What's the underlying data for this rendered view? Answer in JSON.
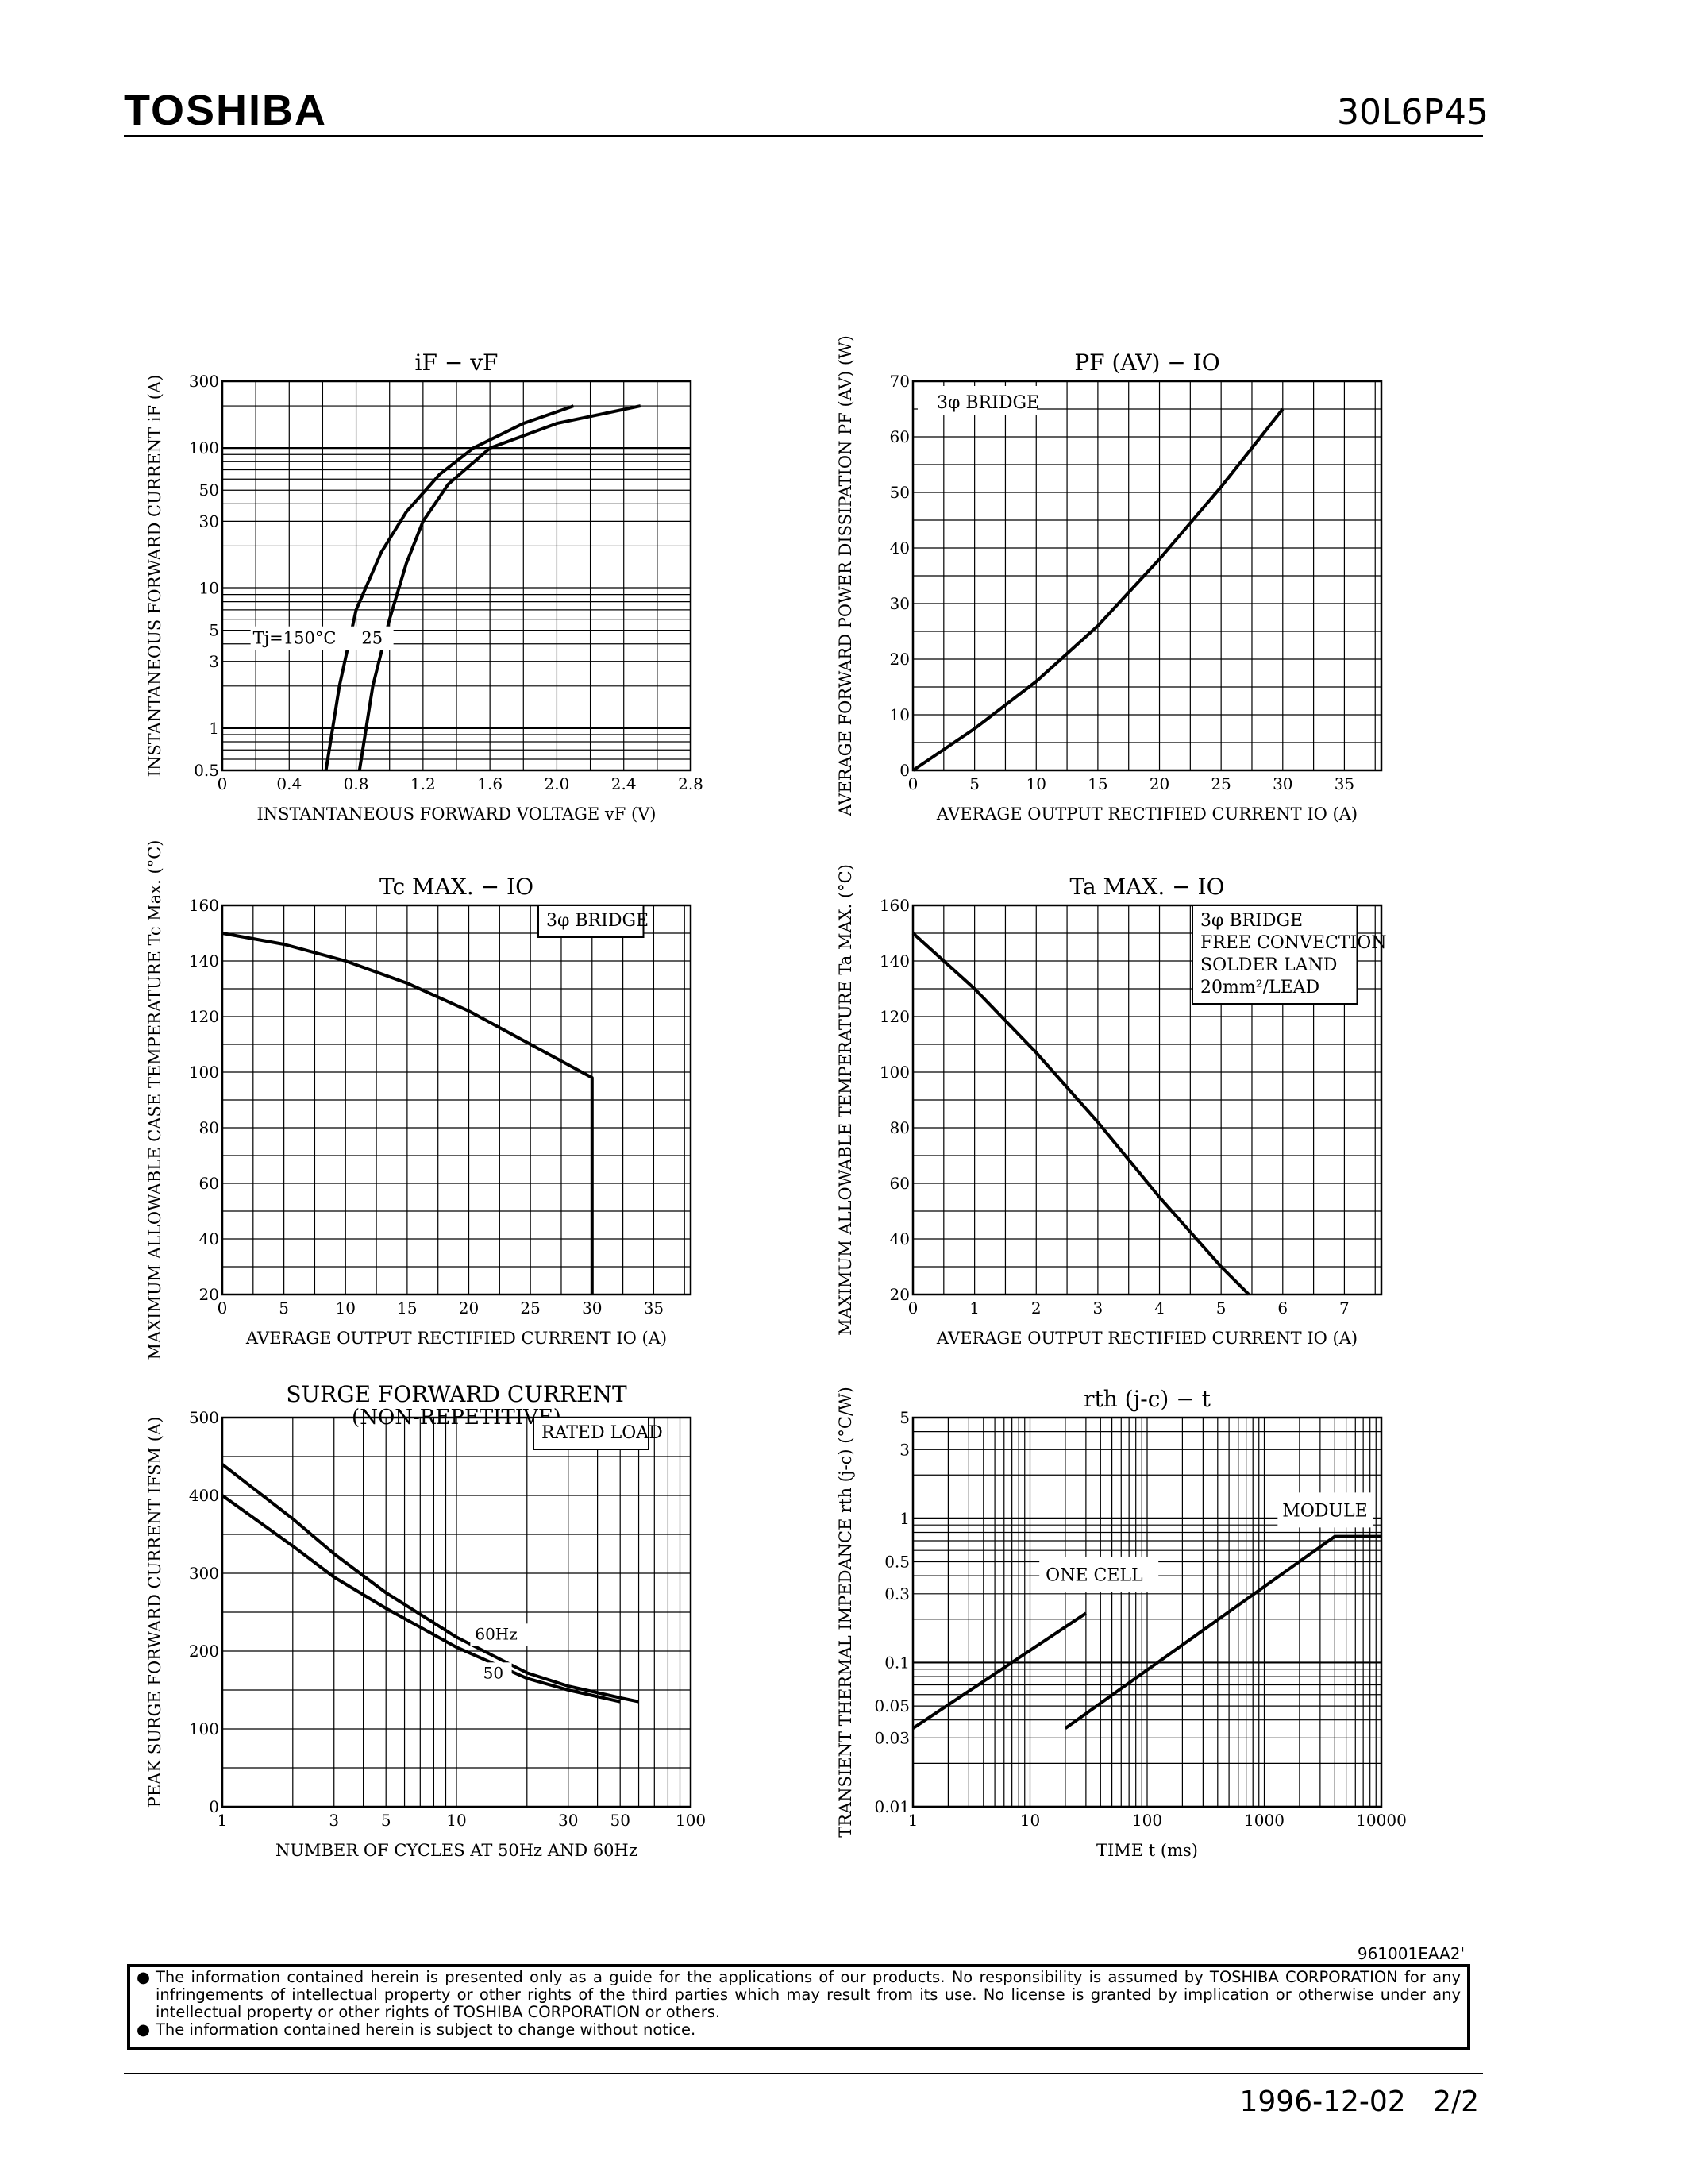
{
  "header": {
    "brand": "TOSHIBA",
    "part_number": "30L6P45"
  },
  "footer": {
    "doc_ref": "961001EAA2'",
    "notices": [
      "The information contained herein is presented only as a guide for the applications of our products. No responsibility is assumed by TOSHIBA CORPORATION for any infringements of intellectual property or other rights of the third parties which may result from its use. No license is granted by implication or otherwise under any intellectual property or other rights of TOSHIBA CORPORATION or others.",
      "The information contained herein is subject to change without notice."
    ],
    "bullet": "●",
    "date": "1996-12-02",
    "page": "2/2"
  },
  "chart_data": [
    {
      "id": "if_vf",
      "type": "line",
      "title": "iF − vF",
      "xlabel": "INSTANTANEOUS FORWARD VOLTAGE vF (V)",
      "ylabel": "INSTANTANEOUS FORWARD CURRENT iF (A)",
      "xlim": [
        0,
        2.8
      ],
      "ylim": [
        0.5,
        300
      ],
      "yscale": "log",
      "xticks": [
        0,
        0.4,
        0.8,
        1.2,
        1.6,
        2.0,
        2.4,
        2.8
      ],
      "xticklabels": [
        "0",
        "0.4",
        "0.8",
        "1.2",
        "1.6",
        "2.0",
        "2.4",
        "2.8"
      ],
      "yticks": [
        0.5,
        1,
        3,
        5,
        10,
        30,
        50,
        100,
        300
      ],
      "yticklabels": [
        "0.5",
        "1",
        "3",
        "5",
        "10",
        "30",
        "50",
        "100",
        "300"
      ],
      "annotations": [
        {
          "text": "Tj=150°C",
          "x": 0.62,
          "y": 4.0
        },
        {
          "text": "25",
          "x": 0.88,
          "y": 4.0
        }
      ],
      "series": [
        {
          "name": "150°C",
          "x": [
            0.62,
            0.7,
            0.8,
            0.95,
            1.1,
            1.3,
            1.5,
            1.8,
            2.1
          ],
          "y": [
            0.5,
            2,
            7,
            18,
            35,
            65,
            100,
            150,
            200
          ]
        },
        {
          "name": "25",
          "x": [
            0.82,
            0.9,
            1.0,
            1.1,
            1.2,
            1.35,
            1.6,
            2.0,
            2.5
          ],
          "y": [
            0.5,
            2,
            6,
            15,
            30,
            55,
            100,
            150,
            200
          ]
        }
      ]
    },
    {
      "id": "pf_io",
      "type": "line",
      "title": "PF (AV) − IO",
      "xlabel": "AVERAGE OUTPUT RECTIFIED CURRENT IO (A)",
      "ylabel": "AVERAGE FORWARD POWER DISSIPATION PF (AV) (W)",
      "xlim": [
        0,
        38
      ],
      "ylim": [
        0,
        70
      ],
      "xticks": [
        0,
        5,
        10,
        15,
        20,
        25,
        30,
        35
      ],
      "xticklabels": [
        "0",
        "5",
        "10",
        "15",
        "20",
        "25",
        "30",
        "35"
      ],
      "yticks": [
        0,
        10,
        20,
        30,
        40,
        50,
        60,
        70
      ],
      "yticklabels": [
        "0",
        "10",
        "20",
        "30",
        "40",
        "50",
        "60",
        "70"
      ],
      "legend_text": "3φ BRIDGE",
      "series": [
        {
          "name": "3φ BRIDGE",
          "x": [
            0,
            5,
            10,
            15,
            20,
            25,
            30
          ],
          "y": [
            0,
            7.5,
            16,
            26,
            38,
            51,
            65
          ]
        }
      ]
    },
    {
      "id": "tc_io",
      "type": "line",
      "title": "Tc MAX. − IO",
      "xlabel": "AVERAGE OUTPUT RECTIFIED CURRENT IO (A)",
      "ylabel": "MAXIMUM ALLOWABLE CASE TEMPERATURE Tc Max. (°C)",
      "xlim": [
        0,
        38
      ],
      "ylim": [
        20,
        160
      ],
      "xticks": [
        0,
        5,
        10,
        15,
        20,
        25,
        30,
        35
      ],
      "xticklabels": [
        "0",
        "5",
        "10",
        "15",
        "20",
        "25",
        "30",
        "35"
      ],
      "yticks": [
        20,
        40,
        60,
        80,
        100,
        120,
        140,
        160
      ],
      "yticklabels": [
        "20",
        "40",
        "60",
        "80",
        "100",
        "120",
        "140",
        "160"
      ],
      "legend_text": "3φ BRIDGE",
      "series": [
        {
          "name": "3φ BRIDGE",
          "x": [
            0,
            5,
            10,
            15,
            20,
            25,
            30,
            30
          ],
          "y": [
            150,
            146,
            140,
            132,
            122,
            110,
            98,
            20
          ]
        }
      ]
    },
    {
      "id": "ta_io",
      "type": "line",
      "title": "Ta MAX. − IO",
      "xlabel": "AVERAGE OUTPUT RECTIFIED CURRENT IO (A)",
      "ylabel": "MAXIMUM ALLOWABLE TEMPERATURE Ta MAX. (°C)",
      "xlim": [
        0,
        7.6
      ],
      "ylim": [
        20,
        160
      ],
      "xticks": [
        0,
        1,
        2,
        3,
        4,
        5,
        6,
        7
      ],
      "xticklabels": [
        "0",
        "1",
        "2",
        "3",
        "4",
        "5",
        "6",
        "7"
      ],
      "yticks": [
        20,
        40,
        60,
        80,
        100,
        120,
        140,
        160
      ],
      "yticklabels": [
        "20",
        "40",
        "60",
        "80",
        "100",
        "120",
        "140",
        "160"
      ],
      "legend_lines": [
        "3φ BRIDGE",
        "FREE CONVECTION",
        "SOLDER LAND",
        "20mm²/LEAD"
      ],
      "series": [
        {
          "name": "3φ BRIDGE",
          "x": [
            0,
            1,
            2,
            3,
            4,
            5,
            5.45
          ],
          "y": [
            150,
            130,
            107,
            82,
            55,
            30,
            20
          ]
        }
      ]
    },
    {
      "id": "ifsm",
      "type": "line",
      "title": "SURGE FORWARD CURRENT",
      "subtitle": "(NON-REPETITIVE)",
      "xlabel": "NUMBER OF CYCLES AT 50Hz AND 60Hz",
      "ylabel": "PEAK SURGE FORWARD CURRENT IFSM (A)",
      "xlim": [
        1,
        100
      ],
      "xscale": "log",
      "ylim": [
        0,
        500
      ],
      "xticks": [
        1,
        3,
        5,
        10,
        30,
        50,
        100
      ],
      "xticklabels": [
        "1",
        "3",
        "5",
        "10",
        "30",
        "50",
        "100"
      ],
      "yticks": [
        0,
        100,
        200,
        300,
        400,
        500
      ],
      "yticklabels": [
        "0",
        "100",
        "200",
        "300",
        "400",
        "500"
      ],
      "legend_text": "RATED LOAD",
      "series": [
        {
          "name": "60Hz",
          "x": [
            1,
            2,
            3,
            5,
            10,
            20,
            30,
            50,
            60
          ],
          "y": [
            440,
            370,
            325,
            275,
            218,
            172,
            155,
            140,
            135
          ]
        },
        {
          "name": "50",
          "x": [
            1,
            2,
            3,
            5,
            10,
            20,
            30,
            50
          ],
          "y": [
            400,
            335,
            295,
            255,
            205,
            165,
            150,
            135
          ]
        }
      ]
    },
    {
      "id": "rth_t",
      "type": "line",
      "title": "rth (j-c) − t",
      "xlabel": "TIME t (ms)",
      "ylabel": "TRANSIENT THERMAL IMPEDANCE rth (j-c) (°C/W)",
      "xlim": [
        1,
        10000
      ],
      "xscale": "log",
      "ylim": [
        0.01,
        5
      ],
      "yscale": "log",
      "xticks": [
        1,
        10,
        100,
        1000,
        10000
      ],
      "xticklabels": [
        "1",
        "10",
        "100",
        "1000",
        "10000"
      ],
      "yticks": [
        0.01,
        0.03,
        0.05,
        0.1,
        0.3,
        0.5,
        1,
        3,
        5
      ],
      "yticklabels": [
        "0.01",
        "0.03",
        "0.05",
        "0.1",
        "0.3",
        "0.5",
        "1",
        "3",
        "5"
      ],
      "series": [
        {
          "name": "ONE CELL",
          "x": [
            1,
            30
          ],
          "y": [
            0.035,
            0.22
          ]
        },
        {
          "name": "MODULE",
          "x": [
            20,
            4000,
            10000
          ],
          "y": [
            0.035,
            0.75,
            0.75
          ]
        }
      ]
    }
  ]
}
